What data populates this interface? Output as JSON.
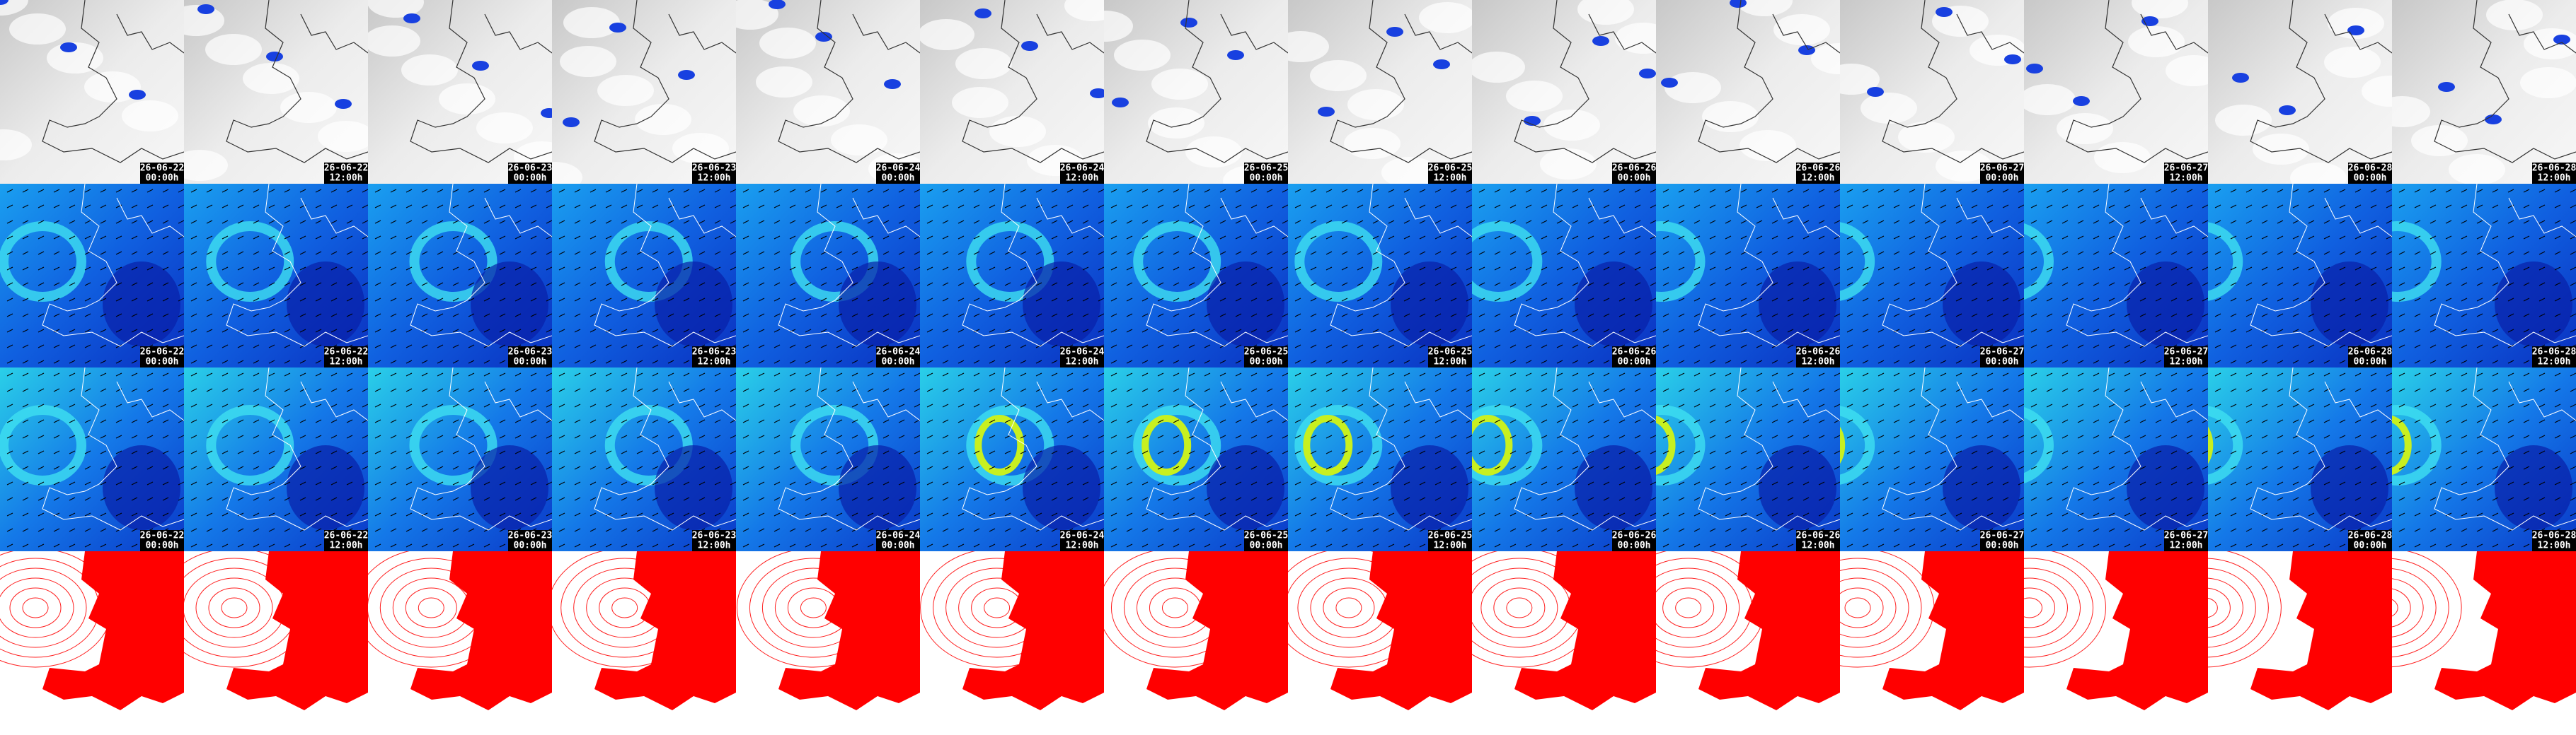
{
  "timestamps": [
    {
      "date": "26-06-22",
      "time": "00:00h"
    },
    {
      "date": "26-06-22",
      "time": "12:00h"
    },
    {
      "date": "26-06-23",
      "time": "00:00h"
    },
    {
      "date": "26-06-23",
      "time": "12:00h"
    },
    {
      "date": "26-06-24",
      "time": "00:00h"
    },
    {
      "date": "26-06-24",
      "time": "12:00h"
    },
    {
      "date": "26-06-25",
      "time": "00:00h"
    },
    {
      "date": "26-06-25",
      "time": "12:00h"
    },
    {
      "date": "26-06-26",
      "time": "00:00h"
    },
    {
      "date": "26-06-26",
      "time": "12:00h"
    },
    {
      "date": "26-06-27",
      "time": "00:00h"
    },
    {
      "date": "26-06-27",
      "time": "12:00h"
    },
    {
      "date": "26-06-28",
      "time": "00:00h"
    },
    {
      "date": "26-06-28",
      "time": "12:00h"
    }
  ]
}
